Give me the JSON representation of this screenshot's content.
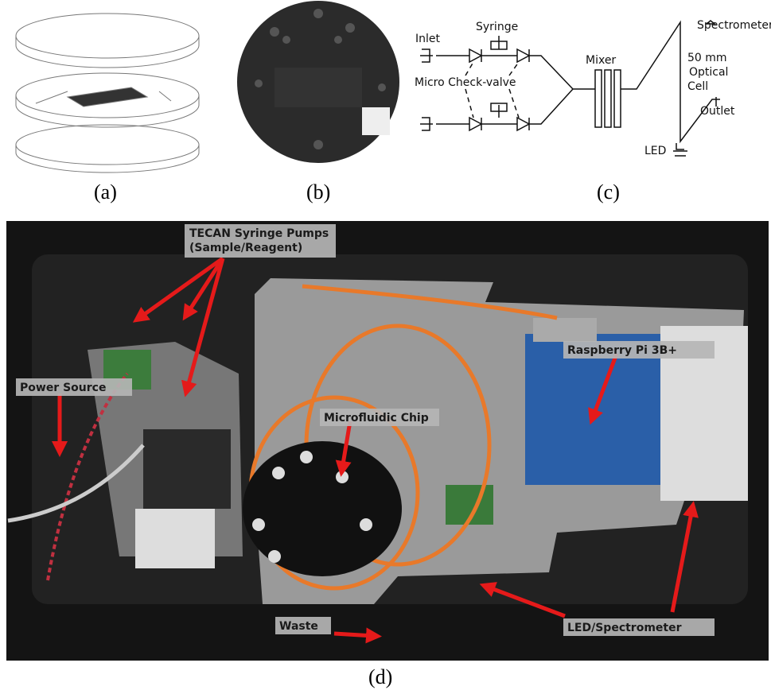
{
  "panel_captions": [
    "(a)",
    "(b)",
    "(c)",
    "(d)"
  ],
  "diagram_c": {
    "inlet": "Inlet",
    "syringe": "Syringe",
    "check_valve": "Micro Check-valve",
    "mixer": "Mixer",
    "spectrometer": "Spectrometer",
    "optical_cell": [
      "50 mm",
      "Optical",
      "Cell"
    ],
    "outlet": "Outlet",
    "led": "LED"
  },
  "photo_d": {
    "pumps": [
      "TECAN Syringe Pumps",
      "(Sample/Reagent)"
    ],
    "power_source": "Power Source",
    "microfluidic_chip": "Microfluidic Chip",
    "raspberry_pi": "Raspberry Pi 3B+",
    "led_spectrometer": "LED/Spectrometer",
    "waste": "Waste"
  }
}
